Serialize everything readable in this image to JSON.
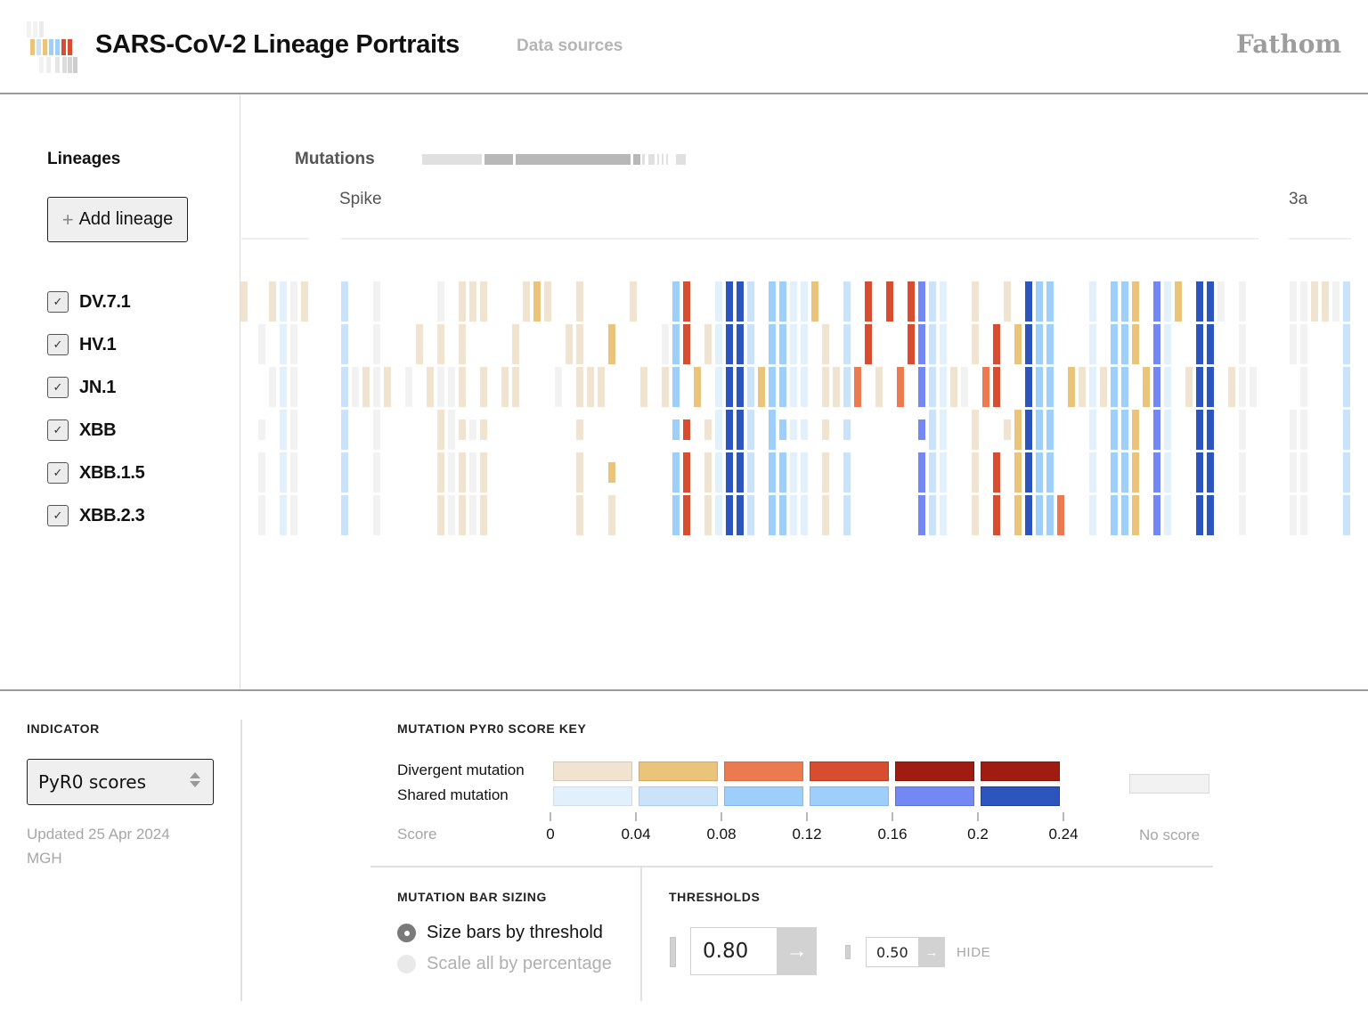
{
  "header": {
    "title": "SARS-CoV-2 Lineage Portraits",
    "nav_link": "Data sources",
    "brand": "Fathom"
  },
  "sidebar": {
    "title": "Lineages",
    "add_button": "Add lineage",
    "add_icon": "plus-icon",
    "lineages": [
      {
        "label": "DV.7.1",
        "checked": true
      },
      {
        "label": "HV.1",
        "checked": true
      },
      {
        "label": "JN.1",
        "checked": true
      },
      {
        "label": "XBB",
        "checked": true
      },
      {
        "label": "XBB.1.5",
        "checked": true
      },
      {
        "label": "XBB.2.3",
        "checked": true
      }
    ]
  },
  "main": {
    "title": "Mutations",
    "genes": [
      "Spike",
      "3a"
    ]
  },
  "colors": {
    "divergent": [
      "#f0e3d0",
      "#ebc47c",
      "#ec7a50",
      "#d84c30",
      "#a01b10",
      "#a01b10"
    ],
    "shared": [
      "#e2f0fc",
      "#cae3fa",
      "#9ecffa",
      "#9ecffa",
      "#7388f2",
      "#2d55be"
    ],
    "none": "#f2f2f2",
    "accent_text": "#111111",
    "muted_text": "#a6a6a6"
  },
  "indicator": {
    "label": "INDICATOR",
    "selected": "PyR0 scores",
    "updated": "Updated 25 Apr 2024",
    "source": "MGH"
  },
  "score_key": {
    "title": "MUTATION PYR0 SCORE KEY",
    "rows": [
      "Divergent mutation",
      "Shared mutation"
    ],
    "score_label": "Score",
    "ticks": [
      "0",
      "0.04",
      "0.08",
      "0.12",
      "0.16",
      "0.2",
      "0.24"
    ],
    "no_score_label": "No score"
  },
  "bar_sizing": {
    "title": "MUTATION BAR SIZING",
    "options": [
      {
        "label": "Size bars by threshold",
        "selected": true
      },
      {
        "label": "Scale all by percentage",
        "selected": false
      }
    ]
  },
  "thresholds": {
    "title": "THRESHOLDS",
    "primary_value": "0.80",
    "secondary_value": "0.50",
    "hide_label": "HIDE",
    "apply_icon": "arrow-right-icon"
  }
}
